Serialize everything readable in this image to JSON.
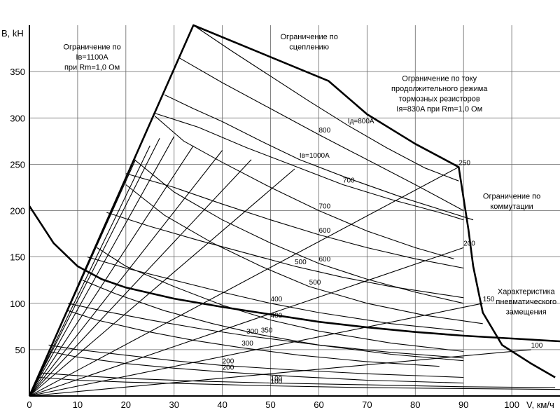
{
  "chart_data": {
    "type": "line",
    "title": "",
    "xlabel": "V, км/ч",
    "ylabel": "B, kH",
    "xlim": [
      0,
      110
    ],
    "ylim": [
      0,
      400
    ],
    "grid": true,
    "legend": "none",
    "x_ticks": [
      0,
      10,
      20,
      30,
      40,
      50,
      60,
      70,
      80,
      90,
      100
    ],
    "y_ticks": [
      50,
      100,
      150,
      200,
      250,
      300,
      350
    ],
    "x_tick_labels": [
      "0",
      "10",
      "20",
      "30",
      "40",
      "50",
      "60",
      "70",
      "80",
      "90",
      "100"
    ],
    "y_tick_labels": [
      "50",
      "100",
      "150",
      "200",
      "250",
      "300",
      "350"
    ],
    "envelope": {
      "points": [
        [
          0,
          0
        ],
        [
          34,
          400
        ],
        [
          62,
          340
        ],
        [
          70,
          304
        ],
        [
          80,
          272
        ],
        [
          89,
          247
        ],
        [
          91,
          180
        ],
        [
          92,
          140
        ],
        [
          94,
          90
        ],
        [
          98,
          55
        ],
        [
          104,
          35
        ],
        [
          109,
          20
        ]
      ]
    },
    "pneumatic": {
      "points": [
        [
          0,
          205
        ],
        [
          5,
          165
        ],
        [
          10,
          140
        ],
        [
          15,
          126
        ],
        [
          20,
          117
        ],
        [
          30,
          105
        ],
        [
          40,
          96
        ],
        [
          50,
          88
        ],
        [
          60,
          80
        ],
        [
          70,
          74
        ],
        [
          80,
          69
        ],
        [
          90,
          65
        ],
        [
          100,
          62
        ],
        [
          110,
          59
        ]
      ]
    },
    "current_curves": [
      {
        "label": "Iв=1000А",
        "points": [
          [
            28,
            325
          ],
          [
            34,
            310
          ],
          [
            40,
            296
          ],
          [
            48,
            275
          ],
          [
            56,
            255
          ],
          [
            66,
            235
          ],
          [
            78,
            213
          ],
          [
            92,
            190
          ]
        ]
      },
      {
        "label": "800",
        "points": [
          [
            31,
            365
          ],
          [
            40,
            338
          ],
          [
            50,
            310
          ],
          [
            60,
            282
          ],
          [
            70,
            255
          ],
          [
            80,
            228
          ],
          [
            90,
            200
          ]
        ]
      },
      {
        "label": "700",
        "points": [
          [
            26,
            302
          ],
          [
            32,
            275
          ],
          [
            40,
            252
          ],
          [
            50,
            225
          ],
          [
            60,
            200
          ],
          [
            70,
            178
          ],
          [
            80,
            160
          ],
          [
            88,
            148
          ]
        ]
      },
      {
        "label": "600",
        "points": [
          [
            22,
            254
          ],
          [
            30,
            220
          ],
          [
            40,
            190
          ],
          [
            50,
            165
          ],
          [
            60,
            143
          ],
          [
            70,
            126
          ],
          [
            80,
            112
          ],
          [
            90,
            100
          ]
        ]
      },
      {
        "label": "500",
        "points": [
          [
            20,
            228
          ],
          [
            28,
            195
          ],
          [
            38,
            165
          ],
          [
            48,
            140
          ],
          [
            58,
            118
          ],
          [
            70,
            100
          ],
          [
            82,
            87
          ],
          [
            94,
            78
          ]
        ]
      },
      {
        "label": "400",
        "points": [
          [
            14,
            160
          ],
          [
            20,
            140
          ],
          [
            30,
            118
          ],
          [
            40,
            98
          ],
          [
            50,
            82
          ],
          [
            60,
            70
          ],
          [
            75,
            57
          ],
          [
            90,
            48
          ]
        ]
      },
      {
        "label": "350",
        "points": [
          [
            11,
            125
          ],
          [
            18,
            110
          ],
          [
            28,
            92
          ],
          [
            38,
            78
          ],
          [
            48,
            66
          ],
          [
            60,
            55
          ],
          [
            75,
            45
          ],
          [
            90,
            38
          ]
        ]
      },
      {
        "label": "300",
        "points": [
          [
            8,
            92
          ],
          [
            14,
            82
          ],
          [
            24,
            70
          ],
          [
            34,
            60
          ],
          [
            44,
            52
          ],
          [
            56,
            44
          ],
          [
            70,
            37
          ],
          [
            85,
            32
          ]
        ]
      },
      {
        "label": "200",
        "points": [
          [
            4,
            48
          ],
          [
            10,
            42
          ],
          [
            20,
            35
          ],
          [
            30,
            30
          ],
          [
            40,
            26
          ],
          [
            55,
            21
          ],
          [
            70,
            17
          ],
          [
            90,
            14
          ]
        ]
      },
      {
        "label": "100",
        "points": [
          [
            2,
            20
          ],
          [
            10,
            17
          ],
          [
            20,
            15
          ],
          [
            35,
            13
          ],
          [
            50,
            11
          ],
          [
            70,
            9
          ],
          [
            90,
            8
          ],
          [
            110,
            7
          ]
        ]
      }
    ],
    "brake_current_curves": [
      {
        "label": "Iд=800А",
        "points": [
          [
            34,
            400
          ],
          [
            42,
            372
          ],
          [
            50,
            345
          ],
          [
            58,
            318
          ],
          [
            66,
            292
          ],
          [
            74,
            268
          ],
          [
            82,
            246
          ],
          [
            89,
            232
          ]
        ]
      },
      {
        "label": "700",
        "points": [
          [
            26,
            305
          ],
          [
            35,
            290
          ],
          [
            45,
            268
          ],
          [
            55,
            248
          ],
          [
            65,
            228
          ],
          [
            75,
            212
          ],
          [
            85,
            198
          ],
          [
            90,
            190
          ]
        ]
      },
      {
        "label": "600",
        "points": [
          [
            20,
            240
          ],
          [
            30,
            225
          ],
          [
            40,
            207
          ],
          [
            50,
            190
          ],
          [
            60,
            174
          ],
          [
            70,
            160
          ],
          [
            80,
            148
          ],
          [
            90,
            138
          ]
        ]
      },
      {
        "label": "500",
        "points": [
          [
            16,
            198
          ],
          [
            25,
            183
          ],
          [
            35,
            168
          ],
          [
            45,
            154
          ],
          [
            55,
            140
          ],
          [
            65,
            128
          ],
          [
            75,
            118
          ],
          [
            90,
            106
          ]
        ]
      },
      {
        "label": "400",
        "points": [
          [
            12,
            150
          ],
          [
            20,
            138
          ],
          [
            30,
            125
          ],
          [
            40,
            112
          ],
          [
            50,
            100
          ],
          [
            60,
            90
          ],
          [
            75,
            78
          ],
          [
            90,
            70
          ]
        ]
      },
      {
        "label": "300",
        "points": [
          [
            8,
            100
          ],
          [
            15,
            92
          ],
          [
            25,
            82
          ],
          [
            35,
            73
          ],
          [
            45,
            65
          ],
          [
            60,
            55
          ],
          [
            75,
            47
          ],
          [
            90,
            41
          ]
        ]
      },
      {
        "label": "200",
        "points": [
          [
            4,
            55
          ],
          [
            10,
            50
          ],
          [
            20,
            44
          ],
          [
            30,
            38
          ],
          [
            40,
            33
          ],
          [
            55,
            28
          ],
          [
            70,
            24
          ],
          [
            90,
            20
          ]
        ]
      },
      {
        "label": "100",
        "points": [
          [
            2,
            25
          ],
          [
            10,
            22
          ],
          [
            20,
            19
          ],
          [
            35,
            16
          ],
          [
            50,
            14
          ],
          [
            70,
            12
          ],
          [
            90,
            10
          ],
          [
            109,
            9
          ]
        ]
      }
    ],
    "field_lines": [
      {
        "label": "",
        "points": [
          [
            0,
            0
          ],
          [
            22,
            255
          ]
        ]
      },
      {
        "label": "",
        "points": [
          [
            0,
            0
          ],
          [
            25,
            270
          ]
        ]
      },
      {
        "label": "",
        "points": [
          [
            0,
            0
          ],
          [
            27,
            278
          ]
        ]
      },
      {
        "label": "",
        "points": [
          [
            0,
            0
          ],
          [
            30,
            280
          ]
        ]
      },
      {
        "label": "",
        "points": [
          [
            0,
            0
          ],
          [
            34,
            270
          ]
        ]
      },
      {
        "label": "",
        "points": [
          [
            0,
            0
          ],
          [
            40,
            265
          ]
        ]
      },
      {
        "label": "",
        "points": [
          [
            0,
            0
          ],
          [
            46,
            255
          ]
        ]
      },
      {
        "label": "",
        "points": [
          [
            0,
            0
          ],
          [
            55,
            245
          ]
        ]
      },
      {
        "label": "250",
        "points": [
          [
            0,
            0
          ],
          [
            89,
            247
          ]
        ]
      },
      {
        "label": "200",
        "points": [
          [
            0,
            0
          ],
          [
            90,
            160
          ]
        ]
      },
      {
        "label": "150",
        "points": [
          [
            0,
            0
          ],
          [
            94,
            100
          ]
        ]
      },
      {
        "label": "100",
        "points": [
          [
            0,
            0
          ],
          [
            104,
            50
          ]
        ]
      }
    ],
    "annotations": [
      {
        "text": "Ограничение по",
        "x": 13,
        "y": 374
      },
      {
        "text": "Iв=1100A",
        "x": 13,
        "y": 363
      },
      {
        "text": "при Rm=1,0 Ом",
        "x": 13,
        "y": 352
      },
      {
        "text": "Ограничение по",
        "x": 58,
        "y": 385
      },
      {
        "text": "сцеплению",
        "x": 58,
        "y": 374
      },
      {
        "text": "Ограничение по току",
        "x": 85,
        "y": 340
      },
      {
        "text": "продолжительного режима",
        "x": 85,
        "y": 329
      },
      {
        "text": "тормозных резисторов",
        "x": 85,
        "y": 318
      },
      {
        "text": "Iя=830A при Rm=1,0 Ом",
        "x": 85,
        "y": 307
      },
      {
        "text": "Ограничение по",
        "x": 100,
        "y": 213
      },
      {
        "text": "коммутации",
        "x": 100,
        "y": 202
      },
      {
        "text": "Характеристика",
        "x": 103,
        "y": 110
      },
      {
        "text": "пневматического",
        "x": 103,
        "y": 99
      },
      {
        "text": "замещения",
        "x": 103,
        "y": 88
      }
    ]
  }
}
